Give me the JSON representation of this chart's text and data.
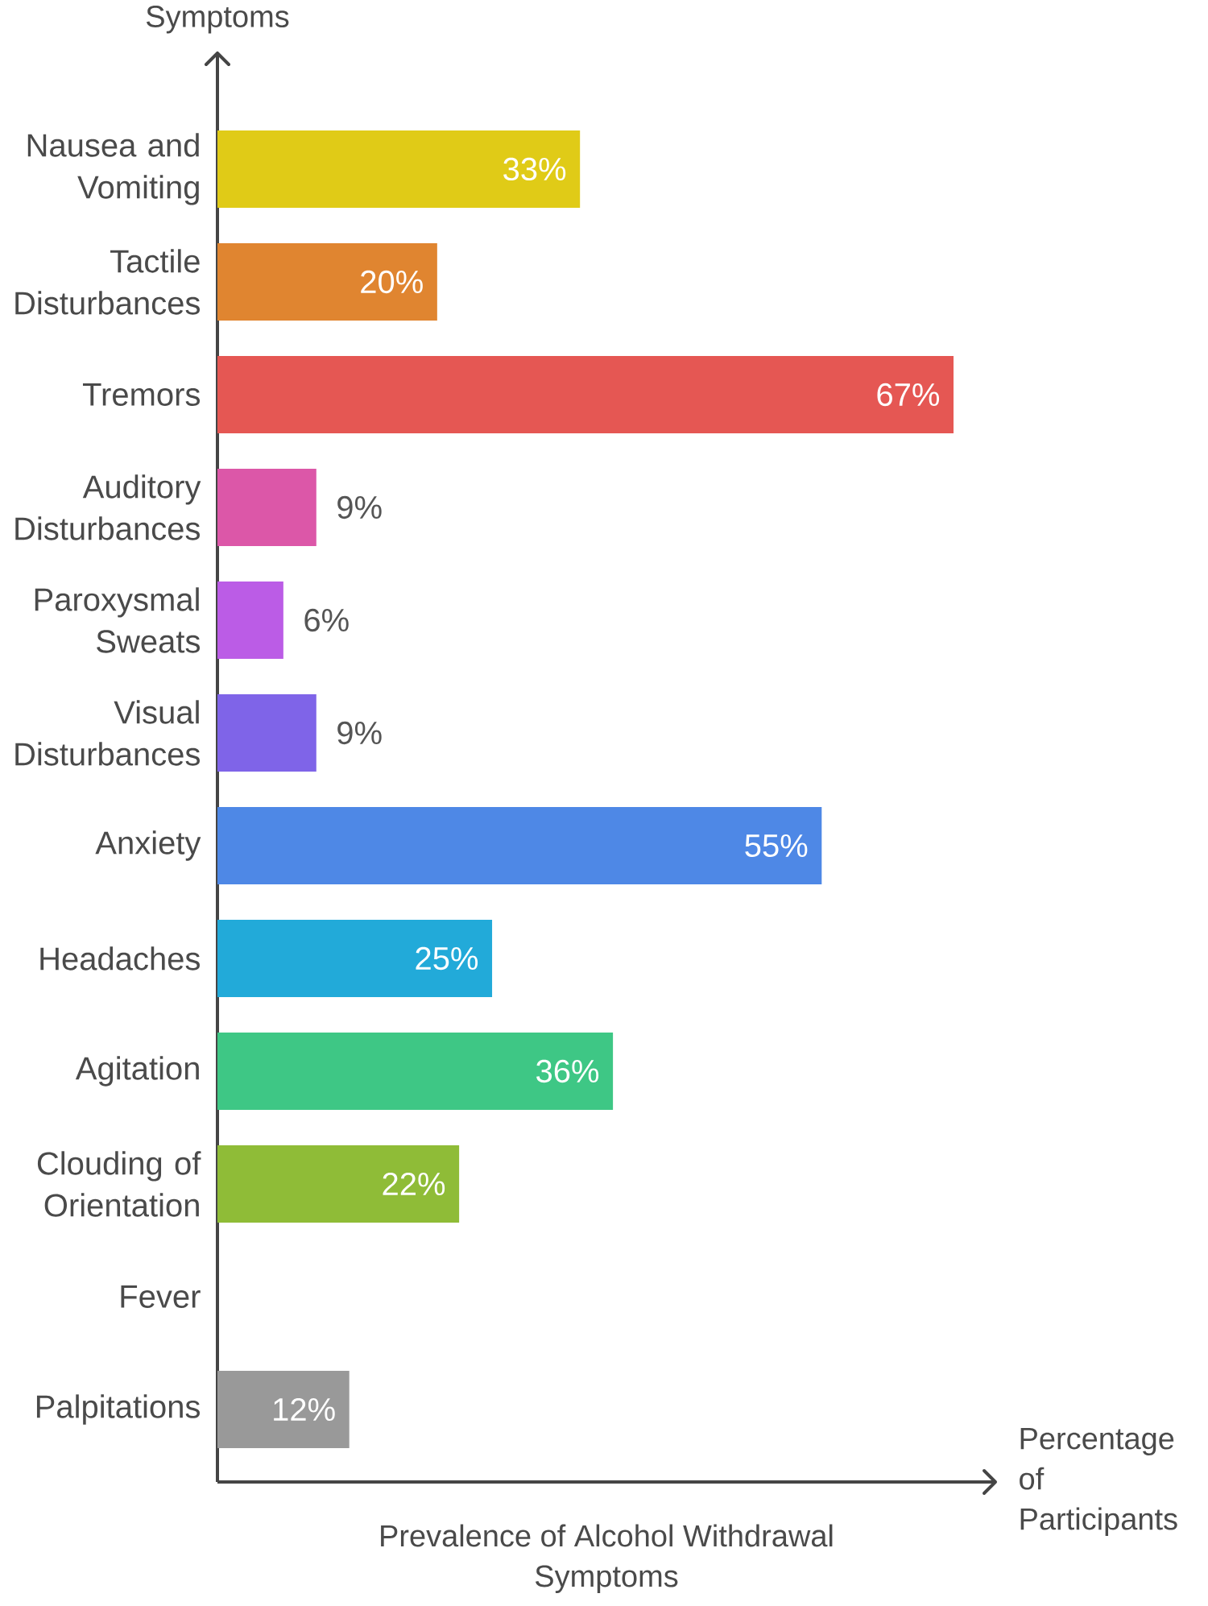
{
  "chart_data": {
    "type": "bar",
    "orientation": "horizontal",
    "title": "Prevalence of Alcohol Withdrawal Symptoms",
    "xlabel": "Percentage of Participants",
    "ylabel": "Symptoms",
    "categories": [
      "Nausea and Vomiting",
      "Tactile Disturbances",
      "Tremors",
      "Auditory Disturbances",
      "Paroxysmal Sweats",
      "Visual Disturbances",
      "Anxiety",
      "Headaches",
      "Agitation",
      "Clouding of Orientation",
      "Fever",
      "Palpitations"
    ],
    "values": [
      33,
      20,
      67,
      9,
      6,
      9,
      55,
      25,
      36,
      22,
      null,
      12
    ],
    "value_labels": [
      "33%",
      "20%",
      "67%",
      "9%",
      "6%",
      "9%",
      "55%",
      "25%",
      "36%",
      "22%",
      null,
      "12%"
    ],
    "colors": [
      "#e0cb17",
      "#e08530",
      "#e55753",
      "#dc57a8",
      "#bb5ce6",
      "#7f64e8",
      "#4e88e6",
      "#22aad9",
      "#3ec785",
      "#8fbc37",
      null,
      "#999999"
    ]
  }
}
